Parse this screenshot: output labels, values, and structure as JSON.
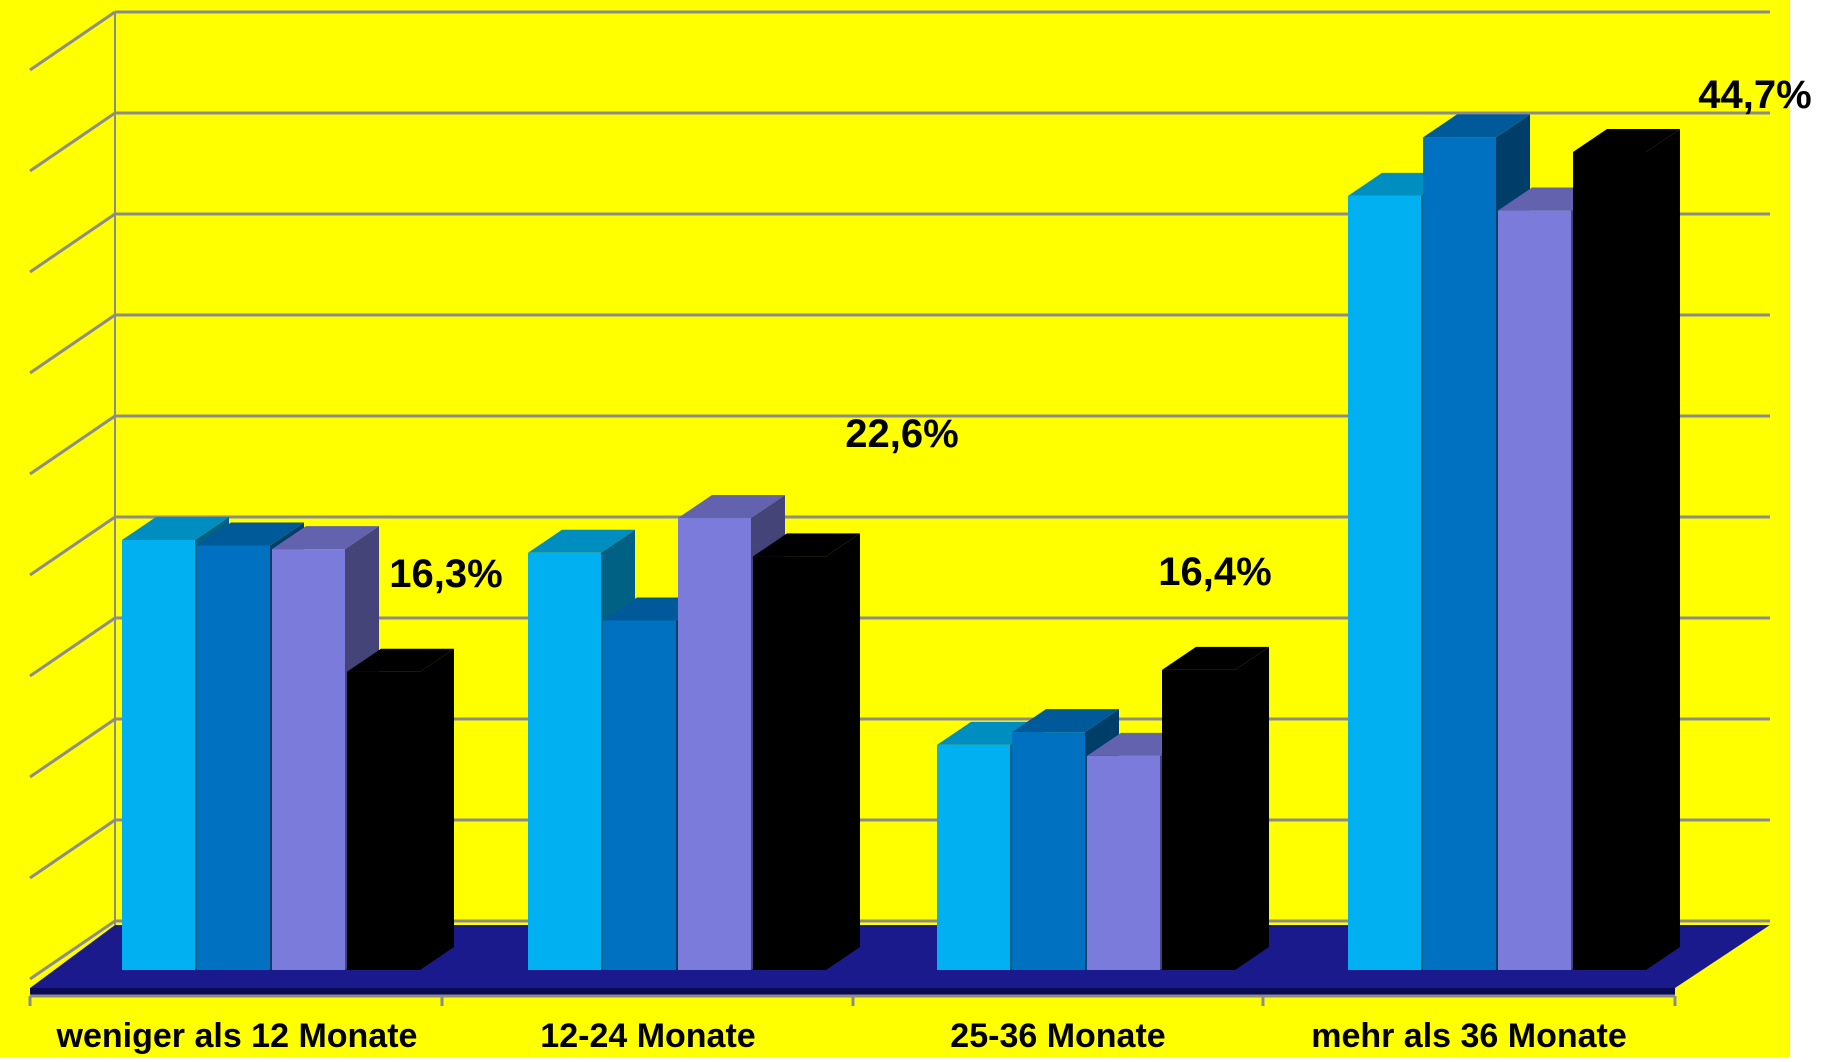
{
  "colors": {
    "background": "#ffff00",
    "outer_background": "#ffffff",
    "grid": "#8c8c8c",
    "floor_top": "#1a1a8c",
    "floor_dark": "#0a0a55",
    "text": "#000000"
  },
  "chart_data": {
    "type": "bar",
    "style": "3d-clustered-columns",
    "title": "",
    "xlabel": "",
    "ylabel": "",
    "ylim": [
      0,
      50
    ],
    "y_tick_labels_visible": false,
    "grid": true,
    "legend": "none",
    "categories": [
      "weniger als 12 Monate",
      "12-24 Monate",
      "25-36 Monate",
      "mehr als 36 Monate"
    ],
    "series": [
      {
        "color": "#00b0f0",
        "values": [
          23.5,
          22.8,
          12.3,
          42.3
        ]
      },
      {
        "color": "#0070c0",
        "values": [
          23.2,
          19.1,
          13.0,
          45.5
        ]
      },
      {
        "color": "#7b7bdb",
        "values": [
          23.0,
          24.7,
          11.7,
          41.5
        ]
      },
      {
        "color": "#000000",
        "values": [
          16.3,
          22.6,
          16.4,
          44.7
        ]
      }
    ],
    "data_labels": [
      {
        "category_index": 0,
        "series_index": 3,
        "text": "16,3%"
      },
      {
        "category_index": 1,
        "series_index": 3,
        "text": "22,6%"
      },
      {
        "category_index": 2,
        "series_index": 3,
        "text": "16,4%"
      },
      {
        "category_index": 3,
        "series_index": 3,
        "text": "44,7%"
      }
    ]
  }
}
